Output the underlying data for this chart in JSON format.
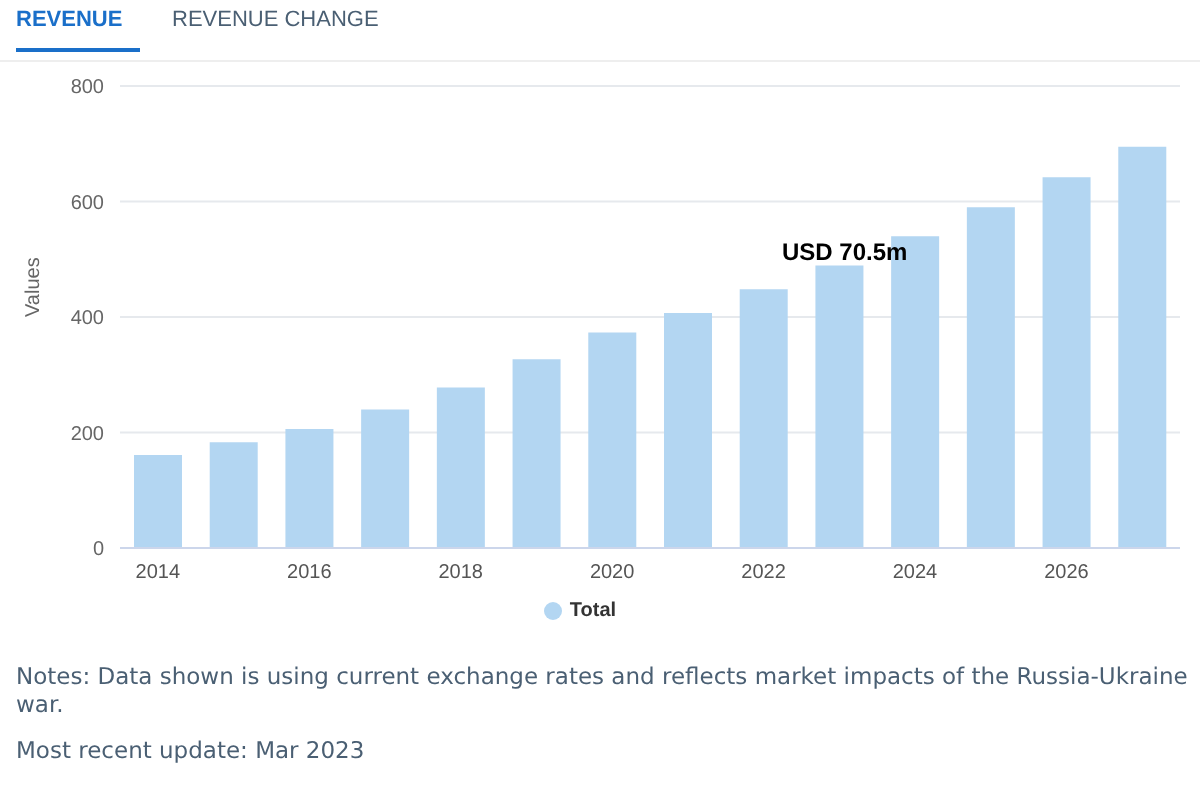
{
  "chart_data": {
    "type": "bar",
    "title": "REVENUE",
    "subtitle": "REVENUE CHANGE",
    "ylabel": "Values",
    "categories": [
      "2014",
      null,
      "2016",
      null,
      "2018",
      null,
      "2020",
      null,
      "2022",
      null,
      "2024",
      null,
      "2026",
      null
    ],
    "series": [
      {
        "name": "Total",
        "color": "#b3d6f2",
        "values": [
          161,
          183,
          206,
          240,
          278,
          327,
          373,
          407,
          448,
          489,
          540,
          590,
          642,
          695
        ]
      }
    ],
    "ylim": [
      0,
      800
    ],
    "yticks": [
      0,
      200,
      400,
      600,
      800
    ],
    "grid": "y",
    "legend": "bottom",
    "annotations": [
      "USD 70.5m",
      "Notes: Data shown is using current exchange rates and reflects market impacts of the Russia-Ukraine war.",
      "Most recent update: Mar 2023"
    ]
  }
}
